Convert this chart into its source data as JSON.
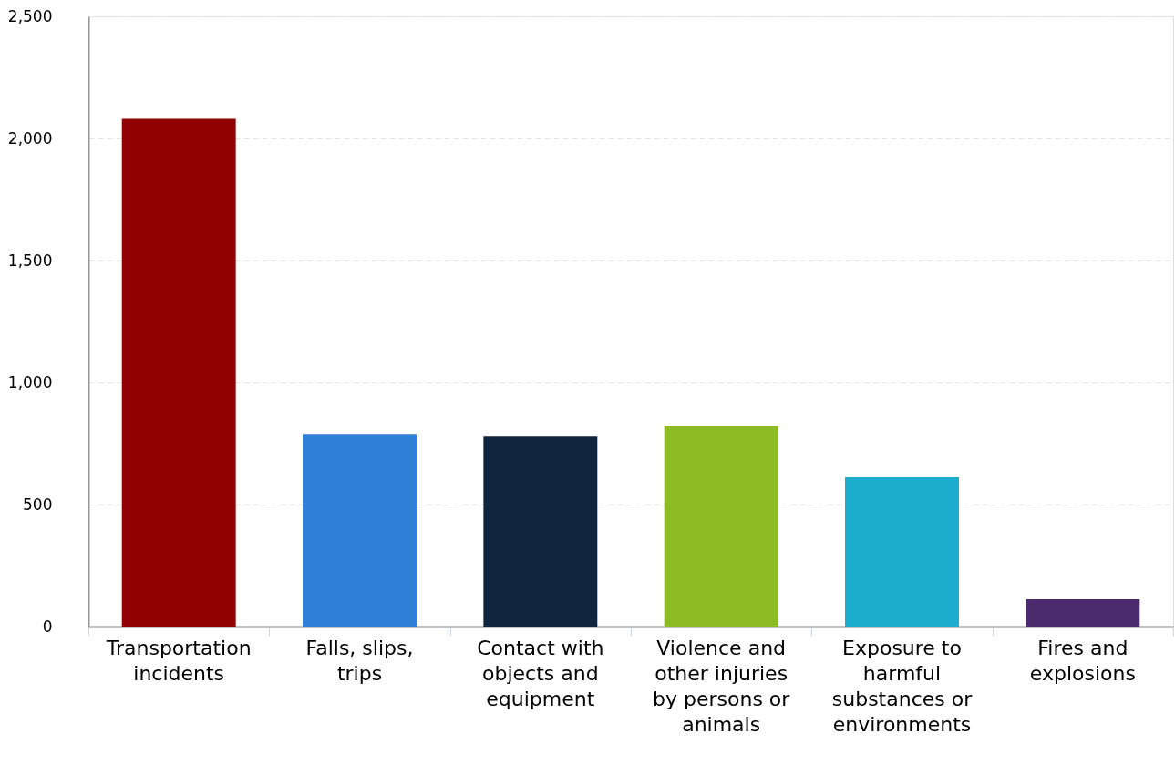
{
  "chart_data": {
    "type": "bar",
    "categories": [
      "Transportation incidents",
      "Falls, slips, trips",
      "Contact with objects and equipment",
      "Violence and other injuries by persons or animals",
      "Exposure to harmful substances or environments",
      "Fires and explosions"
    ],
    "values": [
      2080,
      786,
      779,
      821,
      612,
      112
    ],
    "colors": [
      "#8f0000",
      "#2f80d9",
      "#0f243d",
      "#8cbb24",
      "#1bacce",
      "#4b2a6e"
    ],
    "ylim": [
      0,
      2500
    ],
    "yticks": [
      0,
      500,
      {
        "value": 1000,
        "label": "1,000"
      },
      {
        "value": 1500,
        "label": "1,500"
      },
      {
        "value": 2000,
        "label": "2,000"
      },
      {
        "value": 2500,
        "label": "2,500"
      }
    ],
    "grid": "y"
  }
}
